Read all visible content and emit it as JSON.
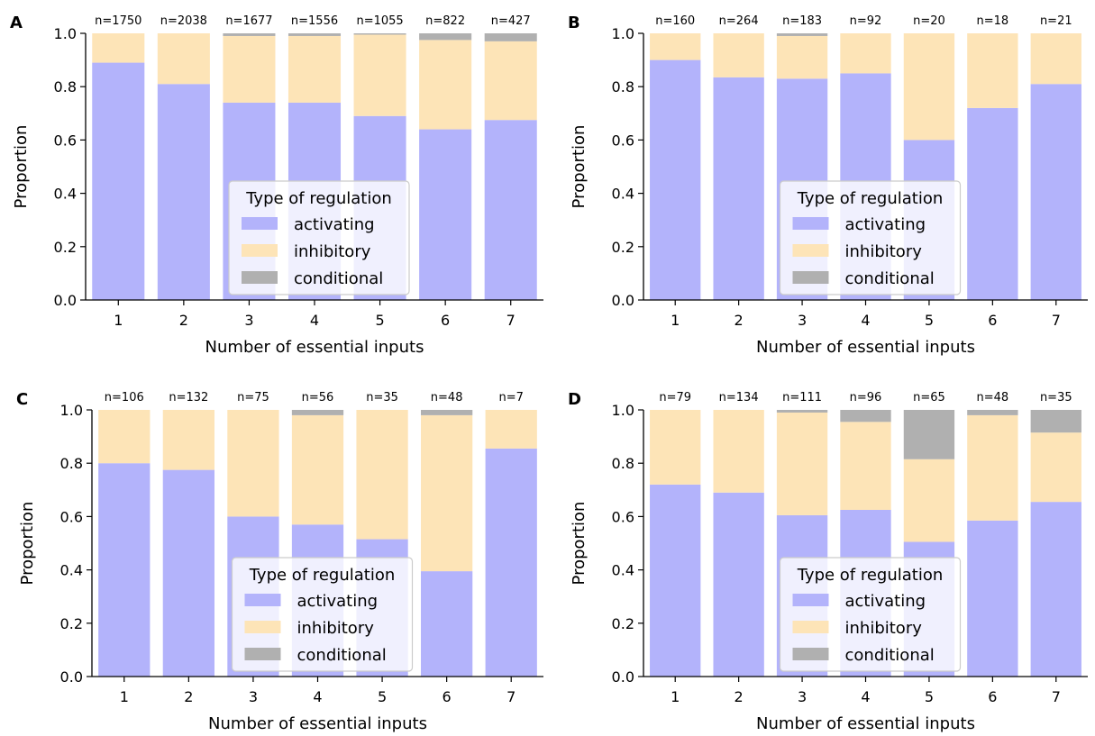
{
  "colors": {
    "activating": "#b3b3fb",
    "inhibitory": "#fde4b7",
    "conditional": "#b0b0b0"
  },
  "legend": {
    "title": "Type of regulation",
    "items": [
      "activating",
      "inhibitory",
      "conditional"
    ]
  },
  "chart_data": [
    {
      "type": "bar",
      "stacked": true,
      "panel": "A",
      "categories": [
        "1",
        "2",
        "3",
        "4",
        "5",
        "6",
        "7"
      ],
      "annotations": [
        "n=1750",
        "n=2038",
        "n=1677",
        "n=1556",
        "n=1055",
        "n=822",
        "n=427"
      ],
      "series": [
        {
          "name": "activating",
          "values": [
            0.89,
            0.81,
            0.74,
            0.74,
            0.69,
            0.64,
            0.675
          ]
        },
        {
          "name": "inhibitory",
          "values": [
            0.11,
            0.19,
            0.25,
            0.25,
            0.305,
            0.335,
            0.295
          ]
        },
        {
          "name": "conditional",
          "values": [
            0.0,
            0.0,
            0.01,
            0.01,
            0.005,
            0.025,
            0.03
          ]
        }
      ],
      "xlabel": "Number of essential inputs",
      "ylabel": "Proportion",
      "ylim": [
        0,
        1
      ],
      "yticks": [
        "0.0",
        "0.2",
        "0.4",
        "0.6",
        "0.8",
        "1.0"
      ],
      "legend_position": "bottom-center"
    },
    {
      "type": "bar",
      "stacked": true,
      "panel": "B",
      "categories": [
        "1",
        "2",
        "3",
        "4",
        "5",
        "6",
        "7"
      ],
      "annotations": [
        "n=160",
        "n=264",
        "n=183",
        "n=92",
        "n=20",
        "n=18",
        "n=21"
      ],
      "series": [
        {
          "name": "activating",
          "values": [
            0.9,
            0.835,
            0.83,
            0.85,
            0.6,
            0.72,
            0.81
          ]
        },
        {
          "name": "inhibitory",
          "values": [
            0.1,
            0.165,
            0.16,
            0.15,
            0.4,
            0.28,
            0.19
          ]
        },
        {
          "name": "conditional",
          "values": [
            0.0,
            0.0,
            0.01,
            0.0,
            0.0,
            0.0,
            0.0
          ]
        }
      ],
      "xlabel": "Number of essential inputs",
      "ylabel": "Proportion",
      "ylim": [
        0,
        1
      ],
      "yticks": [
        "0.0",
        "0.2",
        "0.4",
        "0.6",
        "0.8",
        "1.0"
      ],
      "legend_position": "bottom-center"
    },
    {
      "type": "bar",
      "stacked": true,
      "panel": "C",
      "categories": [
        "1",
        "2",
        "3",
        "4",
        "5",
        "6",
        "7"
      ],
      "annotations": [
        "n=106",
        "n=132",
        "n=75",
        "n=56",
        "n=35",
        "n=48",
        "n=7"
      ],
      "series": [
        {
          "name": "activating",
          "values": [
            0.8,
            0.775,
            0.6,
            0.57,
            0.515,
            0.395,
            0.855
          ]
        },
        {
          "name": "inhibitory",
          "values": [
            0.2,
            0.225,
            0.4,
            0.41,
            0.485,
            0.585,
            0.145
          ]
        },
        {
          "name": "conditional",
          "values": [
            0.0,
            0.0,
            0.0,
            0.02,
            0.0,
            0.02,
            0.0
          ]
        }
      ],
      "xlabel": "Number of essential inputs",
      "ylabel": "Proportion",
      "ylim": [
        0,
        1
      ],
      "yticks": [
        "0.0",
        "0.2",
        "0.4",
        "0.6",
        "0.8",
        "1.0"
      ],
      "legend_position": "bottom-center"
    },
    {
      "type": "bar",
      "stacked": true,
      "panel": "D",
      "categories": [
        "1",
        "2",
        "3",
        "4",
        "5",
        "6",
        "7"
      ],
      "annotations": [
        "n=79",
        "n=134",
        "n=111",
        "n=96",
        "n=65",
        "n=48",
        "n=35"
      ],
      "series": [
        {
          "name": "activating",
          "values": [
            0.72,
            0.69,
            0.605,
            0.625,
            0.505,
            0.585,
            0.655
          ]
        },
        {
          "name": "inhibitory",
          "values": [
            0.28,
            0.31,
            0.385,
            0.33,
            0.31,
            0.395,
            0.26
          ]
        },
        {
          "name": "conditional",
          "values": [
            0.0,
            0.0,
            0.01,
            0.045,
            0.185,
            0.02,
            0.085
          ]
        }
      ],
      "xlabel": "Number of essential inputs",
      "ylabel": "Proportion",
      "ylim": [
        0,
        1
      ],
      "yticks": [
        "0.0",
        "0.2",
        "0.4",
        "0.6",
        "0.8",
        "1.0"
      ],
      "legend_position": "bottom-center"
    }
  ]
}
